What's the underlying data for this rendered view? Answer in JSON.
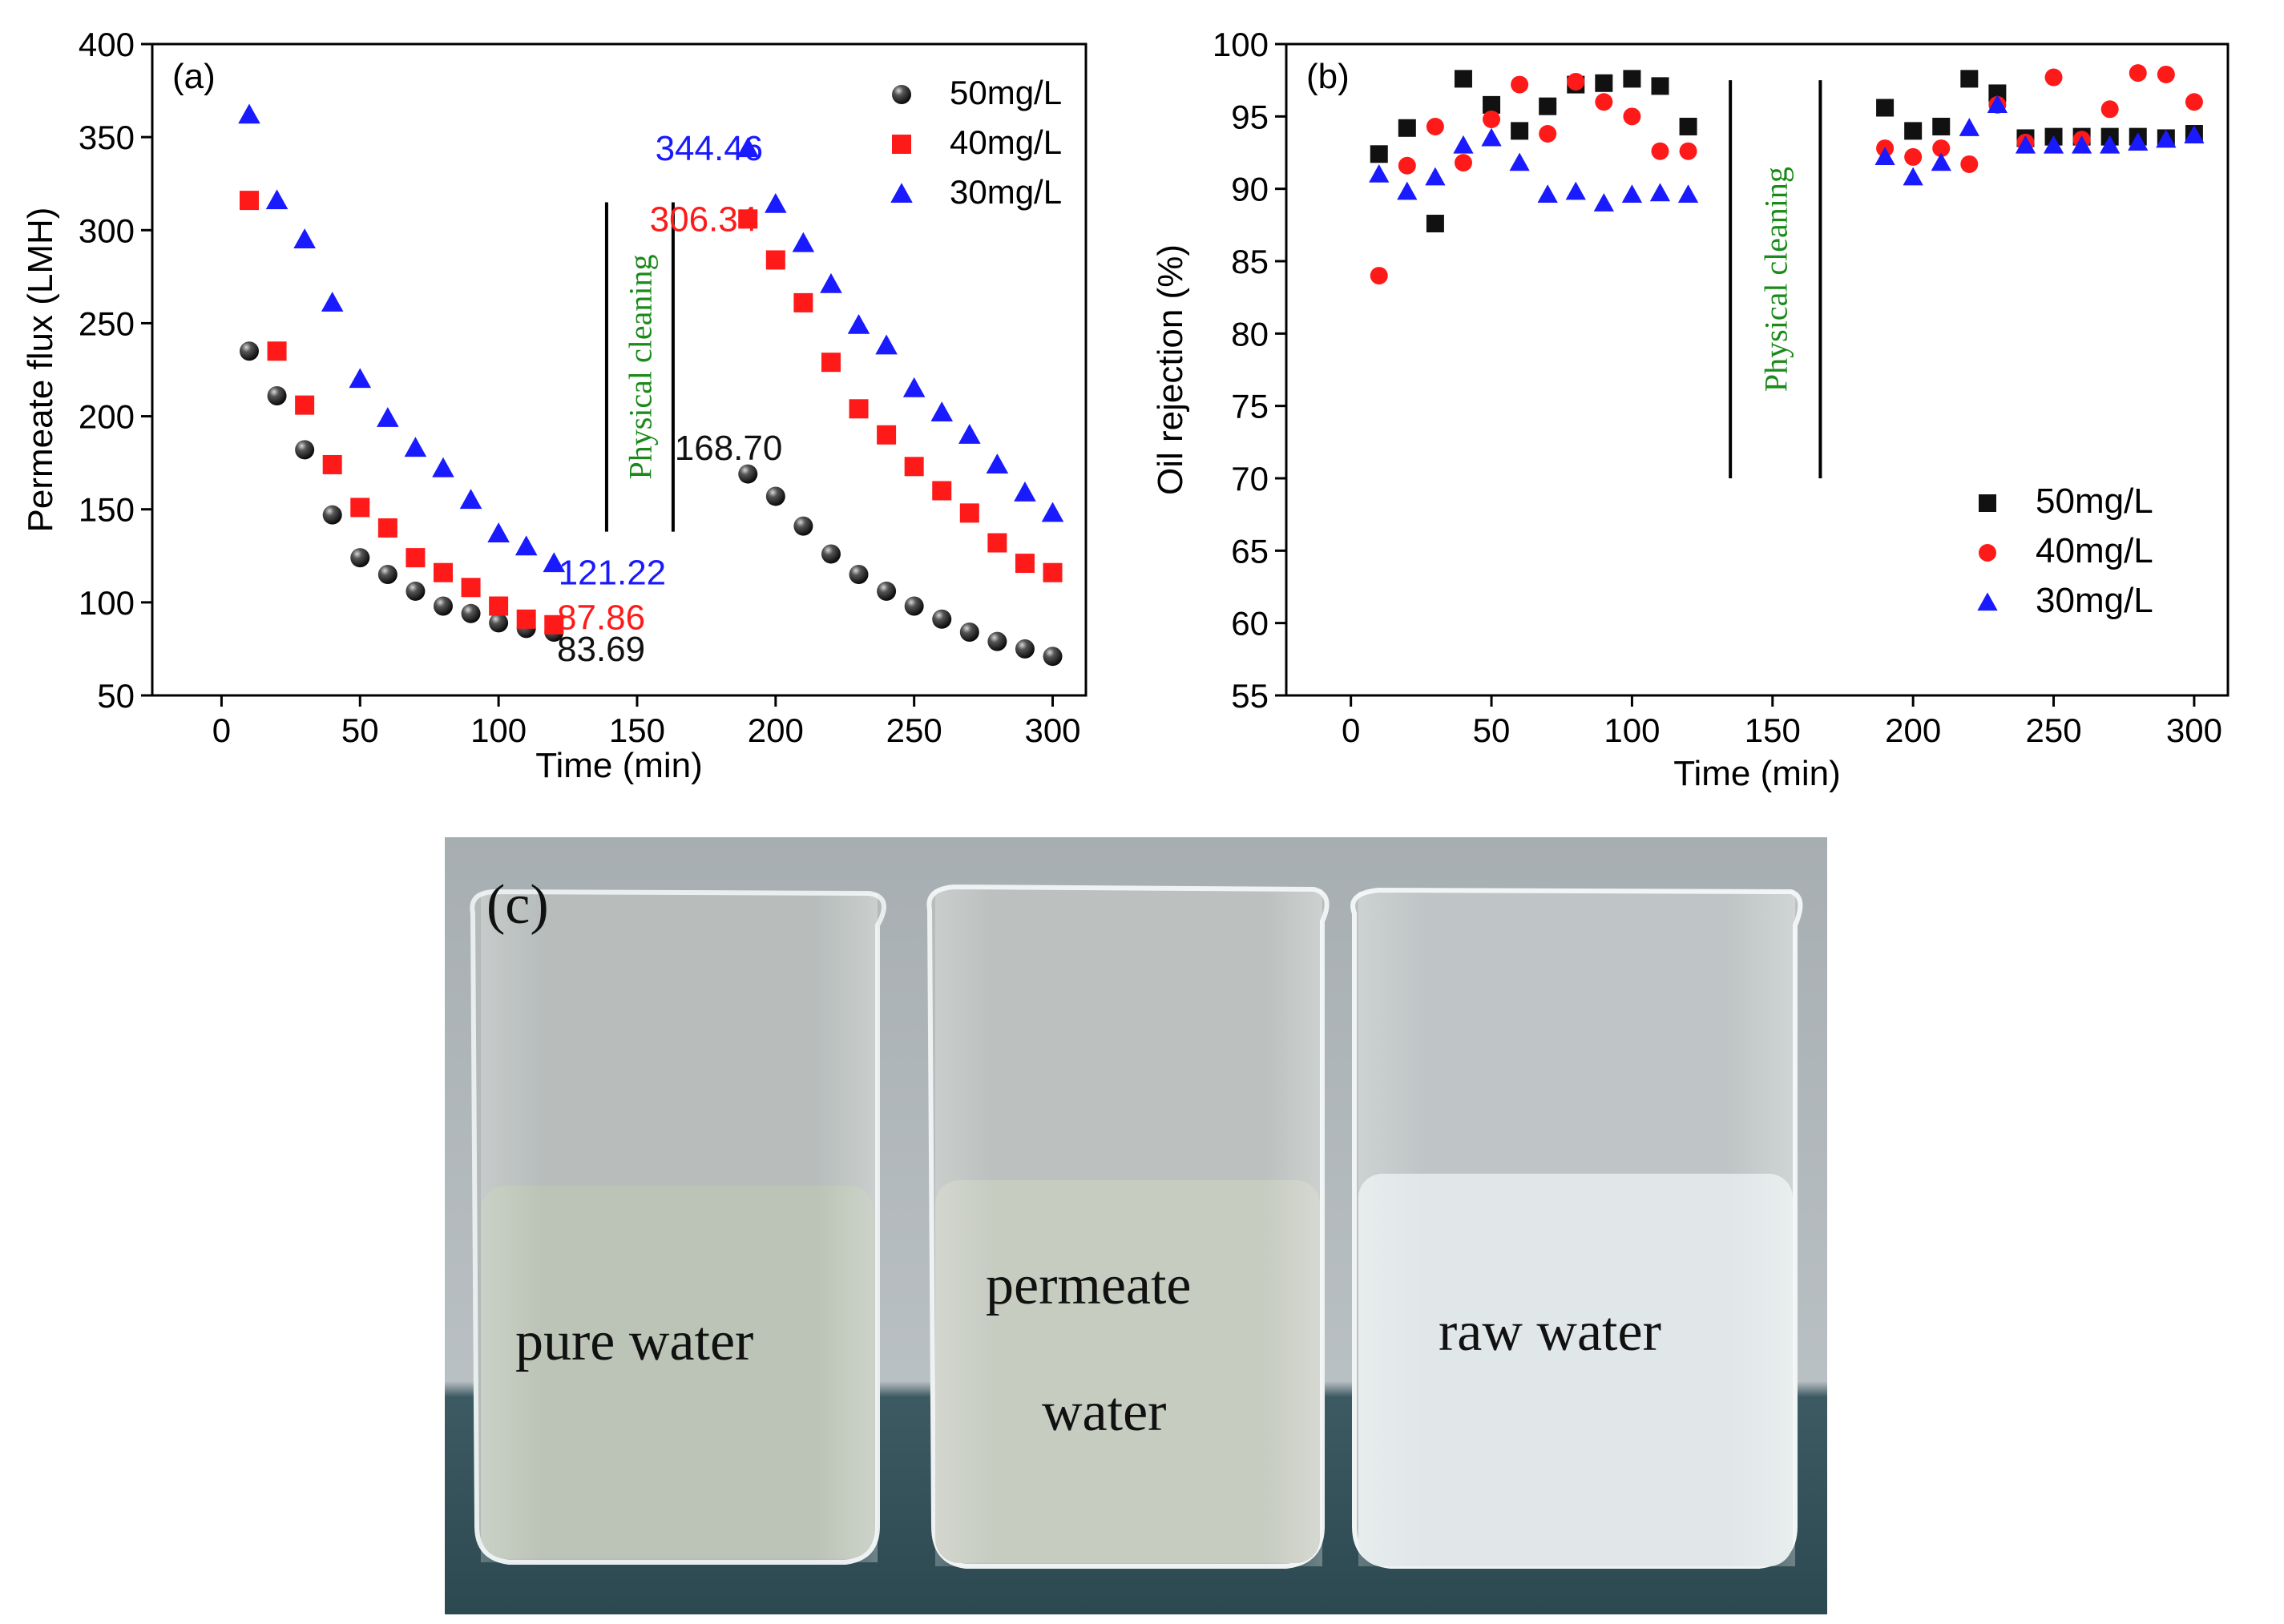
{
  "chart_data": [
    {
      "panel_label": "(a)",
      "type": "scatter",
      "xlabel": "Time (min)",
      "ylabel": "Permeate flux (LMH)",
      "xlim": [
        -25,
        312
      ],
      "ylim": [
        50,
        400
      ],
      "xticks": [
        0,
        50,
        100,
        150,
        200,
        250,
        300
      ],
      "yticks": [
        50,
        100,
        150,
        200,
        250,
        300,
        350,
        400
      ],
      "legend": {
        "placement": "top-right",
        "entries": [
          "50mg/L",
          "40mg/L",
          "30mg/L"
        ]
      },
      "series": [
        {
          "name": "50mg/L",
          "color": "#111111",
          "marker": "sphere",
          "x": [
            10,
            20,
            30,
            40,
            50,
            60,
            70,
            80,
            90,
            100,
            110,
            120,
            190,
            200,
            210,
            220,
            230,
            240,
            250,
            260,
            270,
            280,
            290,
            300
          ],
          "y": [
            235,
            211,
            182,
            147,
            124,
            115,
            106,
            98,
            94,
            89,
            86,
            84,
            169,
            157,
            141,
            126,
            115,
            106,
            98,
            91,
            84,
            79,
            75,
            71
          ]
        },
        {
          "name": "40mg/L",
          "color": "#ff1a1a",
          "marker": "square",
          "x": [
            10,
            20,
            30,
            40,
            50,
            60,
            70,
            80,
            90,
            100,
            110,
            120,
            190,
            200,
            210,
            220,
            230,
            240,
            250,
            260,
            270,
            280,
            290,
            300
          ],
          "y": [
            316,
            235,
            206,
            174,
            151,
            140,
            124,
            116,
            108,
            98,
            91,
            88,
            306,
            284,
            261,
            229,
            204,
            190,
            173,
            160,
            148,
            132,
            121,
            116
          ]
        },
        {
          "name": "30mg/L",
          "color": "#1a1aff",
          "marker": "triangle",
          "x": [
            10,
            20,
            30,
            40,
            50,
            60,
            70,
            80,
            90,
            100,
            110,
            120,
            190,
            200,
            210,
            220,
            230,
            240,
            250,
            260,
            270,
            280,
            290,
            300
          ],
          "y": [
            362,
            316,
            295,
            261,
            220,
            199,
            183,
            172,
            155,
            137,
            130,
            121,
            344,
            314,
            293,
            271,
            249,
            238,
            215,
            202,
            190,
            174,
            159,
            148
          ]
        }
      ],
      "annotations": [
        {
          "text": "344.46",
          "x": 176,
          "y": 344,
          "color": "#1a1aff"
        },
        {
          "text": "306.34",
          "x": 174,
          "y": 306,
          "color": "#ff1a1a"
        },
        {
          "text": "168.70",
          "x": 183,
          "y": 183,
          "color": "#111111"
        },
        {
          "text": "121.22",
          "x": 141,
          "y": 116,
          "color": "#1a1aff"
        },
        {
          "text": "87.86",
          "x": 137,
          "y": 92,
          "color": "#ff1a1a"
        },
        {
          "text": "83.69",
          "x": 137,
          "y": 75,
          "color": "#111111"
        }
      ],
      "cleaning": {
        "text": "Physical cleaning",
        "color": "#1a8a1a",
        "x_lines": [
          139,
          163
        ],
        "y_range": [
          138,
          315
        ]
      }
    },
    {
      "panel_label": "(b)",
      "type": "scatter",
      "xlabel": "Time (min)",
      "ylabel": "Oil rejection (%)",
      "xlim": [
        -23,
        312
      ],
      "ylim": [
        55,
        100
      ],
      "xticks": [
        0,
        50,
        100,
        150,
        200,
        250,
        300
      ],
      "yticks": [
        55,
        60,
        65,
        70,
        75,
        80,
        85,
        90,
        95,
        100
      ],
      "legend": {
        "placement": "bottom-right",
        "entries": [
          "50mg/L",
          "40mg/L",
          "30mg/L"
        ]
      },
      "series": [
        {
          "name": "50mg/L",
          "color": "#111111",
          "marker": "square",
          "x": [
            10,
            20,
            30,
            40,
            50,
            60,
            70,
            80,
            90,
            100,
            110,
            120,
            190,
            200,
            210,
            220,
            230,
            240,
            250,
            260,
            270,
            280,
            290,
            300
          ],
          "y": [
            92.4,
            94.2,
            87.6,
            97.6,
            95.8,
            94.0,
            95.7,
            97.2,
            97.3,
            97.6,
            97.1,
            94.3,
            95.6,
            94.0,
            94.3,
            97.6,
            96.6,
            93.5,
            93.6,
            93.6,
            93.6,
            93.6,
            93.5,
            93.8
          ]
        },
        {
          "name": "40mg/L",
          "color": "#ff1a1a",
          "marker": "circle",
          "x": [
            10,
            20,
            30,
            40,
            50,
            60,
            70,
            80,
            90,
            100,
            110,
            120,
            190,
            200,
            210,
            220,
            230,
            240,
            250,
            260,
            270,
            280,
            290,
            300
          ],
          "y": [
            84.0,
            91.6,
            94.3,
            91.8,
            94.8,
            97.2,
            93.8,
            97.4,
            96.0,
            95.0,
            92.6,
            92.6,
            92.8,
            92.2,
            92.8,
            91.7,
            95.8,
            93.2,
            97.7,
            93.4,
            95.5,
            98.0,
            97.9,
            96.0
          ]
        },
        {
          "name": "30mg/L",
          "color": "#1a1aff",
          "marker": "triangle",
          "x": [
            10,
            20,
            30,
            40,
            50,
            60,
            70,
            80,
            90,
            100,
            110,
            120,
            190,
            200,
            210,
            220,
            230,
            240,
            250,
            260,
            270,
            280,
            290,
            300
          ],
          "y": [
            91.0,
            89.8,
            90.8,
            93.0,
            93.5,
            91.8,
            89.6,
            89.8,
            89.0,
            89.6,
            89.7,
            89.6,
            92.2,
            90.8,
            91.8,
            94.2,
            95.8,
            93.0,
            93.0,
            93.0,
            93.0,
            93.2,
            93.4,
            93.7
          ]
        }
      ],
      "cleaning": {
        "text": "Physical cleaning",
        "color": "#1a8a1a",
        "x_lines": [
          135,
          167
        ],
        "y_range": [
          70,
          97.5
        ]
      }
    }
  ],
  "photo": {
    "panel_label": "(c)",
    "labels": {
      "pure": "pure water",
      "permeate_1": "permeate",
      "permeate_2": "water",
      "raw": "raw water"
    }
  }
}
